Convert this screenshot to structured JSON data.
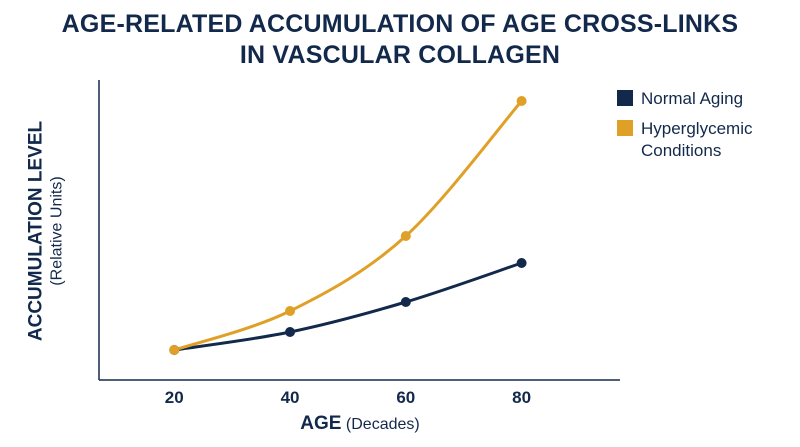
{
  "title": {
    "line1": "AGE-RELATED ACCUMULATION OF AGE CROSS-LINKS",
    "line2": "IN VASCULAR COLLAGEN"
  },
  "colors": {
    "normal": "#13294b",
    "hyper": "#e0a028",
    "axis": "#13294b",
    "text": "#13294b"
  },
  "chart_data": {
    "type": "line",
    "title": "AGE-RELATED ACCUMULATION OF AGE CROSS-LINKS IN VASCULAR COLLAGEN",
    "xlabel_main": "AGE",
    "xlabel_sub": "(Decades)",
    "ylabel_main": "ACCUMULATION LEVEL",
    "ylabel_sub": "(Relative Units)",
    "x": [
      20,
      40,
      60,
      80
    ],
    "x_tick_labels": [
      "20",
      "40",
      "60",
      "80"
    ],
    "xlim": [
      7,
      97
    ],
    "ylim": [
      0,
      10
    ],
    "grid": false,
    "legend_position": "top-right",
    "series": [
      {
        "name": "Normal Aging",
        "values": [
          1.0,
          1.6,
          2.6,
          3.9
        ],
        "color": "#13294b"
      },
      {
        "name": "Hyperglycemic Conditions",
        "values": [
          1.0,
          2.3,
          4.8,
          9.3
        ],
        "color": "#e0a028"
      }
    ]
  }
}
